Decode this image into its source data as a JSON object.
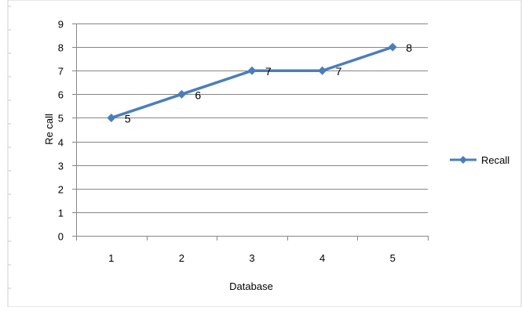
{
  "chart_data": {
    "type": "line",
    "title": "",
    "xlabel": "Database",
    "ylabel": "Re call",
    "categories": [
      "1",
      "2",
      "3",
      "4",
      "5"
    ],
    "ylim": [
      0,
      9
    ],
    "yticks": [
      "0",
      "1",
      "2",
      "3",
      "4",
      "5",
      "6",
      "7",
      "8",
      "9"
    ],
    "grid": true,
    "legend": "right",
    "series": [
      {
        "name": "Recall",
        "values": [
          5,
          6,
          7,
          7,
          8
        ],
        "data_labels": [
          "5",
          "6",
          "7",
          "7",
          "8"
        ],
        "color": "#4a7ebb",
        "marker": "diamond"
      }
    ]
  }
}
